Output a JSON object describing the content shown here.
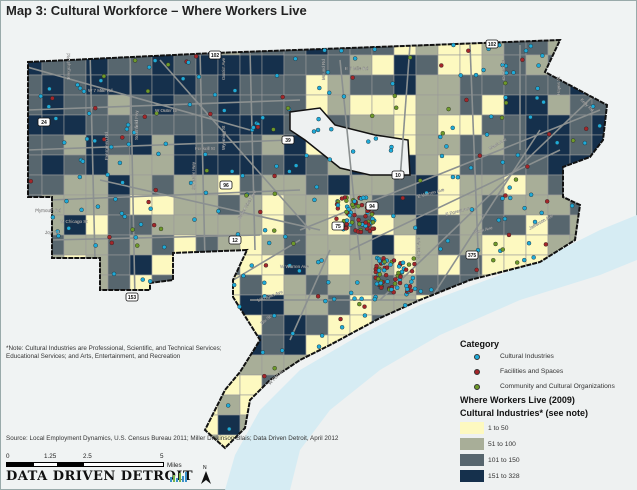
{
  "title": "Map 3: Cultural Workforce – Where Workers Live",
  "note": "*Note: Cultural Industries are Professional, Scientific, and Technical Services; Educational Services; and Arts, Entertainment, and Recreation",
  "source": "Source: Local Employment Dynamics, U.S. Census Bureau 2011; Miller Dickinson Blais; Data Driven Detroit, April 2012",
  "scale_bar": {
    "labels": [
      "0",
      "1.25",
      "2.5",
      "5"
    ],
    "unit": "Miles"
  },
  "north_arrow": "N",
  "logo": "DATA DRIVEN DETROIT",
  "legend": {
    "category_title": "Category",
    "categories": [
      {
        "label": "Cultural Industries",
        "color": "#1eaad8"
      },
      {
        "label": "Facilities and Spaces",
        "color": "#a3262a"
      },
      {
        "label": "Community and Cultural Organizations",
        "color": "#6e9a2a"
      }
    ],
    "choropleth_title_1": "Where Workers Live (2009)",
    "choropleth_title_2": "Cultural Industries* (see note)",
    "classes": [
      {
        "label": "1 to 50",
        "color": "#fdf9c0"
      },
      {
        "label": "51 to 100",
        "color": "#a8ae98"
      },
      {
        "label": "101 to 150",
        "color": "#57666e"
      },
      {
        "label": "151 to 328",
        "color": "#15304c"
      }
    ]
  },
  "colors": {
    "river": "#d6ecf3",
    "roads": "#8b9090",
    "boundary": "#111111",
    "excluded": "#eef1f1"
  },
  "streets": [
    "W 7 Mile Rd",
    "W Outer Dr",
    "Telegraph Rd",
    "Evergreen Rd",
    "Southfield Fwy",
    "Schaefer Hwy",
    "Wyoming St",
    "Fenkell St",
    "E 7 Mile Rd",
    "Gratiot Ave",
    "Mound Rd",
    "Conant St",
    "Hayes St",
    "Kelly Rd",
    "Mack Ave",
    "Harper Ave",
    "Plymouth Rd",
    "W Chicago St",
    "Joy Rd",
    "Grand River Ave",
    "W Warren Ave",
    "Michigan Ave",
    "E Warren Ave",
    "E Forest Ave",
    "Mack Ave",
    "W Fort St",
    "Jefferson Ave",
    "Dix St"
  ],
  "shields": [
    "102",
    "102",
    "24",
    "96",
    "94",
    "10",
    "75",
    "12",
    "153",
    "39",
    "375"
  ]
}
